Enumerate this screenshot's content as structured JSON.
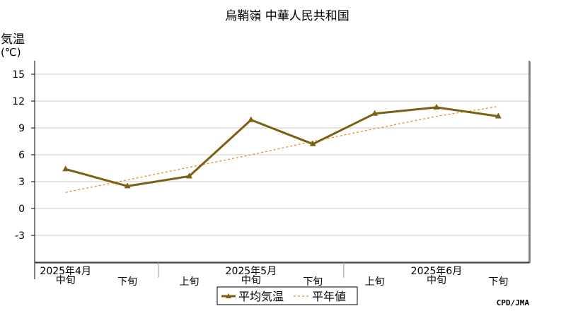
{
  "chart_data": {
    "type": "line",
    "title": "烏鞘嶺 中華人民共和国",
    "ylabel": "気温",
    "yunit": "(℃)",
    "ylim": [
      -6,
      16.5
    ],
    "yticks": [
      "15",
      "12",
      "9",
      "6",
      "3",
      "0",
      "-3"
    ],
    "ytick_values": [
      15,
      12,
      9,
      6,
      3,
      0,
      -3
    ],
    "dekads": [
      "中旬",
      "下旬",
      "上旬",
      "中旬",
      "下旬",
      "上旬",
      "中旬",
      "下旬"
    ],
    "months": [
      {
        "label": "2025年4月",
        "under_index": 0
      },
      {
        "label": "2025年5月",
        "under_index": 3
      },
      {
        "label": "2025年6月",
        "under_index": 6
      }
    ],
    "grid": true,
    "legend_position": "bottom-center",
    "series": [
      {
        "name": "平均気温",
        "color": "#7a6012",
        "style": "solid",
        "marker": "triangle",
        "values": [
          4.4,
          2.5,
          3.6,
          9.9,
          7.2,
          10.6,
          11.3,
          10.3
        ]
      },
      {
        "name": "平年値",
        "color": "#f08a24",
        "style": "dashed",
        "marker": "none",
        "values": [
          1.8,
          3.2,
          4.6,
          6.0,
          7.5,
          8.9,
          10.3,
          11.4
        ]
      }
    ],
    "credit": "CPD/JMA"
  }
}
